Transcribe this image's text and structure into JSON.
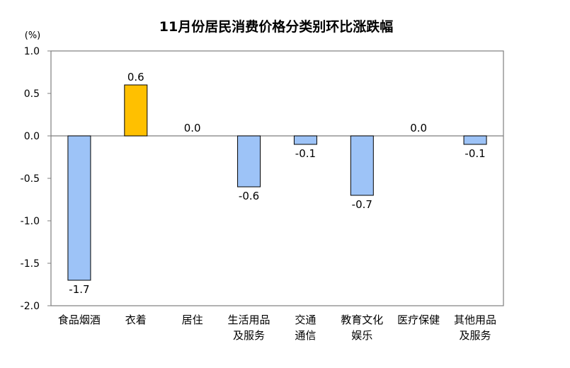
{
  "chart_data": {
    "type": "bar",
    "title": "11月份居民消费价格分类别环比涨跌幅",
    "unit_label": "(%)",
    "categories": [
      [
        "食品烟酒"
      ],
      [
        "衣着"
      ],
      [
        "居住"
      ],
      [
        "生活用品",
        "及服务"
      ],
      [
        "交通",
        "通信"
      ],
      [
        "教育文化",
        "娱乐"
      ],
      [
        "医疗保健"
      ],
      [
        "其他用品",
        "及服务"
      ]
    ],
    "values": [
      -1.7,
      0.6,
      0.0,
      -0.6,
      -0.1,
      -0.7,
      0.0,
      -0.1
    ],
    "value_labels": [
      "-1.7",
      "0.6",
      "0.0",
      "-0.6",
      "-0.1",
      "-0.7",
      "0.0",
      "-0.1"
    ],
    "y_ticks": [
      1.0,
      0.5,
      0.0,
      -0.5,
      -1.0,
      -1.5,
      -2.0
    ],
    "y_tick_labels": [
      "1.0",
      "0.5",
      "0.0",
      "-0.5",
      "-1.0",
      "-1.5",
      "-2.0"
    ],
    "ylim": [
      -2.0,
      1.0
    ],
    "grid": false,
    "legend": "none",
    "colors": {
      "negative_bar": "#9DC3F7",
      "positive_bar": "#FFC000",
      "bar_outline": "#000000",
      "axis": "#7f7f7f"
    }
  }
}
